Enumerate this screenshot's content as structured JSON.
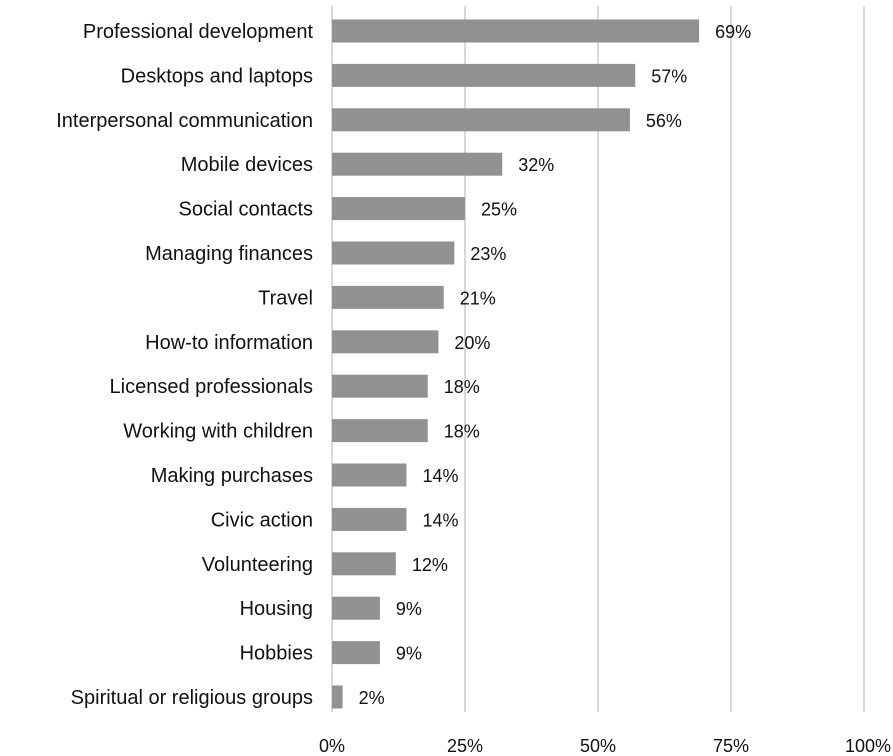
{
  "chart_data": {
    "type": "bar",
    "orientation": "horizontal",
    "categories": [
      "Professional development",
      "Desktops and laptops",
      "Interpersonal communication",
      "Mobile devices",
      "Social contacts",
      "Managing finances",
      "Travel",
      "How-to information",
      "Licensed professionals",
      "Working with children",
      "Making purchases",
      "Civic action",
      "Volunteering",
      "Housing",
      "Hobbies",
      "Spiritual or religious groups"
    ],
    "values": [
      69,
      57,
      56,
      32,
      25,
      23,
      21,
      20,
      18,
      18,
      14,
      14,
      12,
      9,
      9,
      2
    ],
    "value_labels": [
      "69%",
      "57%",
      "56%",
      "32%",
      "25%",
      "23%",
      "21%",
      "20%",
      "18%",
      "18%",
      "14%",
      "14%",
      "12%",
      "9%",
      "9%",
      "2%"
    ],
    "x_ticks": [
      "0%",
      "25%",
      "50%",
      "75%",
      "100%"
    ],
    "xlim": [
      0,
      100
    ],
    "grid": "vertical",
    "legend": "none",
    "title": "",
    "xlabel": "",
    "ylabel": "",
    "colors": {
      "bar": "#919191",
      "grid": "#d9d9d9",
      "text": "#111111"
    }
  }
}
